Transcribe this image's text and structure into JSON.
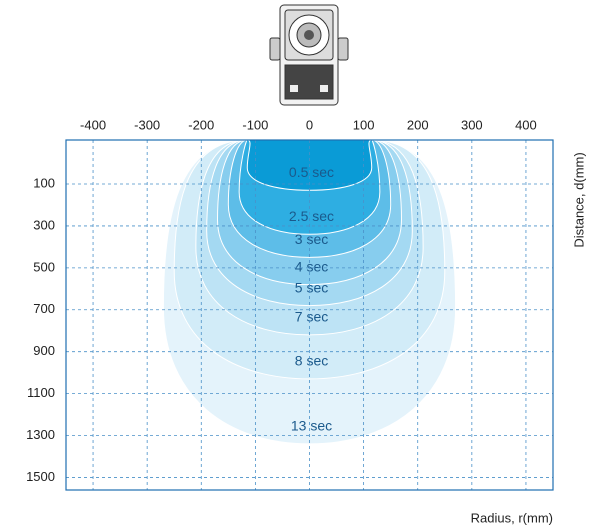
{
  "chart_data": {
    "type": "contour",
    "x_label": "Radius, r(mm)",
    "y_label": "Distance, d(mm)",
    "xlim": [
      -450,
      450
    ],
    "xticks": [
      -400,
      -300,
      -200,
      -100,
      0,
      100,
      200,
      300,
      400
    ],
    "ylim": [
      -110,
      1560
    ],
    "yticks": [
      100,
      300,
      500,
      700,
      900,
      1100,
      1300,
      1500
    ],
    "y_inverted": true,
    "grid": true,
    "series": [
      {
        "name": "13 sec",
        "color": "#e4f3fb",
        "radius": 270,
        "depth": 1340
      },
      {
        "name": "8 sec",
        "color": "#d2ecf8",
        "radius": 250,
        "depth": 1030
      },
      {
        "name": "7 sec",
        "color": "#bde3f5",
        "radius": 210,
        "depth": 820
      },
      {
        "name": "5 sec",
        "color": "#a4d9f2",
        "radius": 190,
        "depth": 680
      },
      {
        "name": "4 sec",
        "color": "#87cdee",
        "radius": 170,
        "depth": 580
      },
      {
        "name": "3 sec",
        "color": "#5dbde8",
        "radius": 150,
        "depth": 450
      },
      {
        "name": "2.5 sec",
        "color": "#2eaee2",
        "radius": 130,
        "depth": 340
      },
      {
        "name": "0.5 sec",
        "color": "#0a9bd6",
        "radius": 115,
        "depth": 130
      }
    ]
  }
}
